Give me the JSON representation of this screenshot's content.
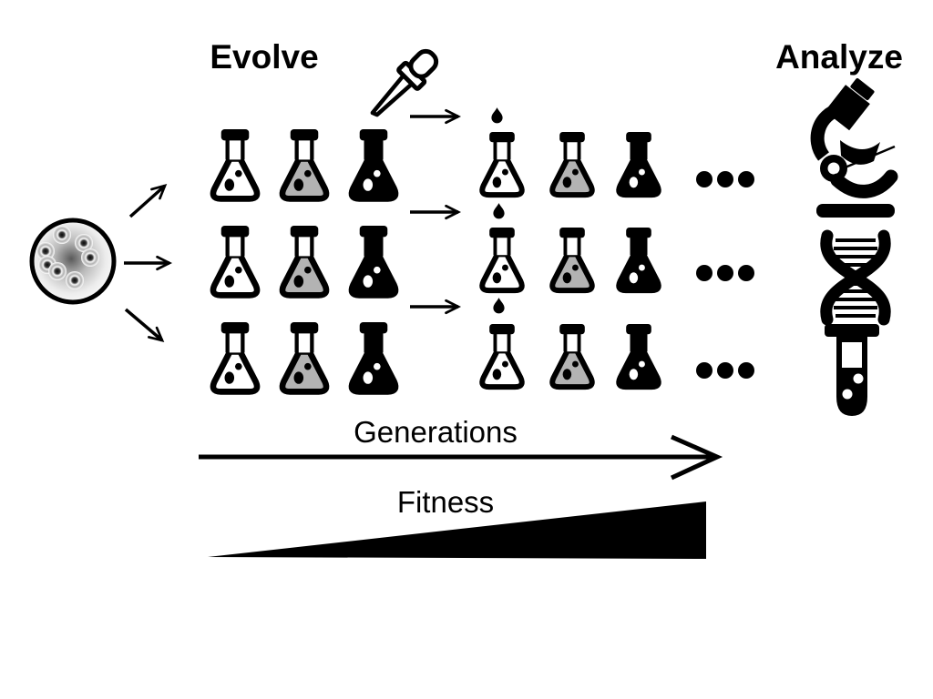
{
  "titles": {
    "evolve": "Evolve",
    "analyze": "Analyze"
  },
  "axis": {
    "generations": "Generations",
    "fitness": "Fitness"
  },
  "colors": {
    "ink": "#000000",
    "flask_gray": "#b3b3b3",
    "background": "#ffffff"
  },
  "icons": {
    "source": "petri-dish-icon",
    "transfer_tool": "pipette-icon",
    "transfer_drop": "droplet-icon",
    "analysis": [
      "microscope-icon",
      "dna-icon",
      "test-tube-icon"
    ],
    "continuation": "ellipsis-icon"
  },
  "flask_grid": {
    "rows": [
      {
        "set1": [
          "light",
          "gray",
          "dark"
        ],
        "set2": [
          "light",
          "gray",
          "dark"
        ],
        "ellipsis": "•••"
      },
      {
        "set1": [
          "light",
          "gray",
          "dark"
        ],
        "set2": [
          "light",
          "gray",
          "dark"
        ],
        "ellipsis": "•••"
      },
      {
        "set1": [
          "light",
          "gray",
          "dark"
        ],
        "set2": [
          "light",
          "gray",
          "dark"
        ],
        "ellipsis": "•••"
      }
    ]
  }
}
